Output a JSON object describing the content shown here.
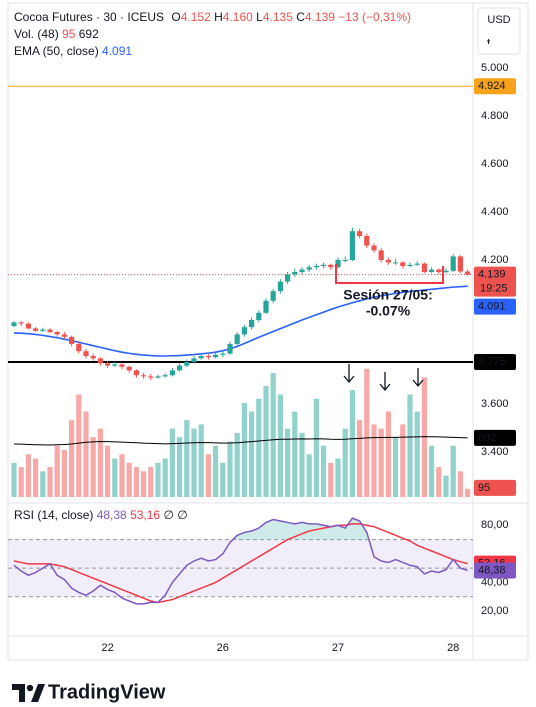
{
  "chart_data": {
    "type": "candlestick",
    "title": "Cocoa Futures · 30 · ICEUS",
    "ohlc_legend": [
      {
        "name": "O",
        "label": "4.152"
      },
      {
        "name": "H",
        "label": "4.160"
      },
      {
        "name": "L",
        "label": "4.135"
      },
      {
        "name": "C",
        "label": "4.139"
      }
    ],
    "change_label": "−13 (−0,31%)",
    "currency": "USD",
    "countdown": "19:25",
    "categories": [
      null,
      null,
      null,
      null,
      null,
      null,
      null,
      null,
      null,
      null,
      null,
      null,
      null,
      "22",
      null,
      null,
      null,
      null,
      null,
      null,
      null,
      null,
      null,
      null,
      null,
      null,
      null,
      null,
      null,
      "26",
      null,
      null,
      null,
      null,
      null,
      null,
      null,
      null,
      null,
      null,
      null,
      null,
      null,
      null,
      null,
      "27",
      null,
      null,
      null,
      null,
      null,
      null,
      null,
      null,
      null,
      null,
      null,
      null,
      null,
      null,
      null,
      "28",
      null,
      null
    ],
    "open": [
      3.925,
      3.94,
      3.935,
      3.915,
      3.905,
      3.91,
      3.9,
      3.89,
      3.88,
      3.85,
      3.82,
      3.8,
      3.79,
      3.77,
      3.76,
      3.765,
      3.755,
      3.74,
      3.72,
      3.715,
      3.71,
      3.715,
      3.72,
      3.74,
      3.76,
      3.775,
      3.79,
      3.8,
      3.795,
      3.805,
      3.81,
      3.85,
      3.89,
      3.92,
      3.95,
      3.98,
      4.03,
      4.07,
      4.11,
      4.14,
      4.15,
      4.16,
      4.17,
      4.175,
      4.18,
      4.17,
      4.2,
      4.2,
      4.32,
      4.3,
      4.26,
      4.24,
      4.2,
      4.19,
      4.19,
      4.175,
      4.18,
      4.185,
      4.15,
      4.16,
      4.15,
      4.155,
      4.215,
      4.152
    ],
    "high": [
      3.945,
      3.945,
      3.94,
      3.92,
      3.918,
      3.915,
      3.905,
      3.9,
      3.885,
      3.86,
      3.83,
      3.81,
      3.795,
      3.78,
      3.775,
      3.77,
      3.76,
      3.745,
      3.73,
      3.725,
      3.722,
      3.728,
      3.75,
      3.77,
      3.785,
      3.8,
      3.81,
      3.808,
      3.815,
      3.82,
      3.86,
      3.9,
      3.93,
      3.96,
      3.99,
      4.04,
      4.08,
      4.12,
      4.15,
      4.165,
      4.17,
      4.18,
      4.185,
      4.19,
      4.185,
      4.21,
      4.215,
      4.335,
      4.33,
      4.31,
      4.27,
      4.25,
      4.21,
      4.205,
      4.195,
      4.19,
      4.195,
      4.19,
      4.17,
      4.165,
      4.165,
      4.225,
      4.22,
      4.16
    ],
    "low": [
      3.92,
      3.925,
      3.91,
      3.9,
      3.9,
      3.895,
      3.88,
      3.87,
      3.84,
      3.81,
      3.79,
      3.78,
      3.76,
      3.75,
      3.755,
      3.745,
      3.73,
      3.71,
      3.705,
      3.7,
      3.705,
      3.71,
      3.715,
      3.735,
      3.755,
      3.77,
      3.785,
      3.785,
      3.79,
      3.795,
      3.805,
      3.845,
      3.88,
      3.91,
      3.94,
      3.975,
      4.02,
      4.06,
      4.1,
      4.13,
      4.14,
      4.15,
      4.16,
      4.165,
      4.16,
      4.165,
      4.19,
      4.195,
      4.29,
      4.25,
      4.23,
      4.19,
      4.18,
      4.18,
      4.165,
      4.17,
      4.175,
      4.145,
      4.145,
      4.14,
      4.145,
      4.15,
      4.145,
      4.135
    ],
    "close": [
      3.94,
      3.935,
      3.915,
      3.905,
      3.91,
      3.9,
      3.89,
      3.88,
      3.85,
      3.82,
      3.8,
      3.79,
      3.77,
      3.76,
      3.765,
      3.755,
      3.74,
      3.72,
      3.715,
      3.71,
      3.715,
      3.72,
      3.74,
      3.76,
      3.775,
      3.79,
      3.8,
      3.795,
      3.805,
      3.81,
      3.85,
      3.89,
      3.92,
      3.95,
      3.98,
      4.03,
      4.07,
      4.11,
      4.14,
      4.15,
      4.16,
      4.17,
      4.175,
      4.18,
      4.17,
      4.2,
      4.2,
      4.32,
      4.3,
      4.26,
      4.24,
      4.2,
      4.19,
      4.19,
      4.175,
      4.18,
      4.185,
      4.15,
      4.16,
      4.15,
      4.155,
      4.215,
      4.152,
      4.139
    ],
    "up_color": "#26a69a",
    "down_color": "#ef5350",
    "ylim": [
      3.2125,
      5.25
    ],
    "yticks": [
      {
        "value": 5,
        "label": "5.000"
      },
      {
        "value": 4.8,
        "label": "4.800"
      },
      {
        "value": 4.6,
        "label": "4.600"
      },
      {
        "value": 4.4,
        "label": "4.400"
      },
      {
        "value": 4.2,
        "label": "4.200"
      },
      {
        "value": 3.6,
        "label": "3.600"
      },
      {
        "value": 3.4,
        "label": "3.400"
      }
    ],
    "grid": false,
    "levels": [
      {
        "value": 4.924,
        "color": "#f7a21b"
      },
      {
        "value": 3.775,
        "color": "#000000"
      }
    ],
    "ema": {
      "name": "EMA (50, close)",
      "color": "#2962ff",
      "values": [
        3.896,
        3.895,
        3.893,
        3.89,
        3.886,
        3.881,
        3.876,
        3.87,
        3.864,
        3.857,
        3.85,
        3.843,
        3.836,
        3.829,
        3.822,
        3.816,
        3.811,
        3.807,
        3.804,
        3.802,
        3.8,
        3.8,
        3.801,
        3.802,
        3.804,
        3.806,
        3.809,
        3.812,
        3.816,
        3.822,
        3.83,
        3.84,
        3.852,
        3.865,
        3.878,
        3.89,
        3.902,
        3.914,
        3.926,
        3.938,
        3.95,
        3.961,
        3.972,
        3.983,
        3.994,
        4.004,
        4.013,
        4.022,
        4.03,
        4.038,
        4.045,
        4.051,
        4.056,
        4.061,
        4.065,
        4.069,
        4.072,
        4.075,
        4.078,
        4.081,
        4.084,
        4.087,
        4.089,
        4.091
      ]
    },
    "volume": {
      "name": "Vol. (48)",
      "ylim": [
        0,
        1720
      ],
      "values": [
        400,
        350,
        500,
        450,
        300,
        350,
        600,
        550,
        900,
        1200,
        1000,
        700,
        800,
        600,
        450,
        500,
        400,
        350,
        300,
        350,
        400,
        450,
        800,
        700,
        900,
        800,
        850,
        500,
        600,
        400,
        650,
        750,
        1100,
        1000,
        1150,
        1300,
        1450,
        1200,
        800,
        1000,
        750,
        500,
        1150,
        600,
        400,
        450,
        800,
        1250,
        900,
        1500,
        850,
        800,
        1000,
        700,
        850,
        1200,
        1000,
        1400,
        600,
        350,
        250,
        600,
        300,
        95
      ],
      "ma": {
        "color": "#000000",
        "values": [
          620,
          618,
          615,
          612,
          610,
          608,
          612,
          615,
          620,
          630,
          640,
          645,
          650,
          648,
          645,
          642,
          638,
          635,
          630,
          628,
          625,
          622,
          625,
          628,
          632,
          635,
          638,
          636,
          634,
          630,
          632,
          635,
          642,
          648,
          655,
          662,
          670,
          675,
          675,
          678,
          680,
          678,
          682,
          680,
          676,
          674,
          676,
          682,
          686,
          692,
          694,
          696,
          698,
          698,
          700,
          702,
          704,
          706,
          705,
          703,
          700,
          698,
          695,
          692
        ]
      }
    },
    "annotation": {
      "text": "Sesión 27/05:",
      "subtext": "-0.07%",
      "color": "#f23645"
    },
    "rsi": {
      "name": "RSI (14, close)",
      "flags": "∅ ∅",
      "color": "#7e57c2",
      "last_label": "48,38",
      "ylim": [
        2.5,
        94.2
      ],
      "yticks": [
        {
          "value": 80,
          "label": "80,00"
        },
        {
          "value": 40,
          "label": "40,00"
        },
        {
          "value": 20,
          "label": "20,00"
        }
      ],
      "hlines": [
        70,
        50,
        30
      ],
      "values": [
        52,
        48,
        45,
        47,
        50,
        53,
        45,
        42,
        36,
        33,
        31,
        34,
        38,
        35,
        33,
        29,
        27,
        25,
        25,
        26,
        26,
        31,
        40,
        46,
        52,
        55,
        57,
        55,
        56,
        60,
        68,
        73,
        75,
        76,
        78,
        82,
        84,
        83,
        82,
        81,
        82,
        81,
        81,
        80,
        79,
        80,
        78,
        85,
        83,
        75,
        58,
        55,
        54,
        56,
        54,
        52,
        51,
        46,
        48,
        47,
        49,
        56,
        50,
        48.38
      ],
      "ma": {
        "color": "#f23645",
        "last_label": "53,16",
        "values": [
          55,
          54,
          53,
          53,
          53,
          53,
          52,
          51,
          49,
          47,
          45,
          43,
          41,
          39,
          37,
          35,
          33,
          31,
          29,
          27,
          26,
          27,
          28,
          30,
          32,
          34,
          36,
          38,
          40,
          43,
          46,
          49,
          52,
          55,
          58,
          61,
          64,
          67,
          70,
          72,
          74,
          76,
          77,
          78,
          79,
          80,
          80,
          81,
          81,
          80,
          79,
          77,
          75,
          73,
          71,
          69,
          66,
          64,
          62,
          60,
          58,
          56,
          54.5,
          53.16
        ]
      }
    }
  },
  "brand": "TradingView"
}
